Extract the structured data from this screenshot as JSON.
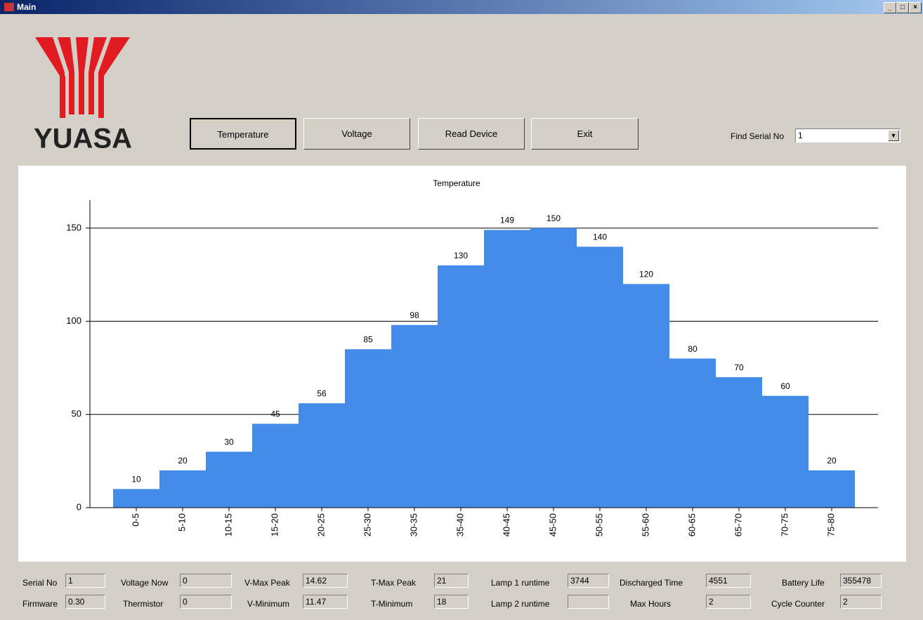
{
  "window": {
    "title": "Main"
  },
  "logo": "YUASA",
  "buttons": [
    "Temperature",
    "Voltage",
    "Read Device",
    "Exit"
  ],
  "serial_search": {
    "label": "Find Serial No",
    "value": "1"
  },
  "chart_data": {
    "type": "bar",
    "title": "Temperature",
    "categories": [
      "0-5",
      "5-10",
      "10-15",
      "15-20",
      "20-25",
      "25-30",
      "30-35",
      "35-40",
      "40-45",
      "45-50",
      "50-55",
      "55-60",
      "60-65",
      "65-70",
      "70-75",
      "75-80"
    ],
    "values": [
      10,
      20,
      30,
      45,
      56,
      85,
      98,
      130,
      149,
      150,
      140,
      120,
      80,
      70,
      60,
      20
    ],
    "color": "#438cea",
    "ylim": [
      0,
      165
    ],
    "yticks": [
      0,
      50,
      100,
      150
    ],
    "grid": true
  },
  "fields": [
    {
      "label": "Serial No",
      "value": "1"
    },
    {
      "label": "Firmware",
      "value": "0.30"
    },
    {
      "label": "Voltage Now",
      "value": "0"
    },
    {
      "label": "Thermistor",
      "value": "0"
    },
    {
      "label": "V-Max Peak",
      "value": "14.62"
    },
    {
      "label": "V-Minimum",
      "value": "11.47"
    },
    {
      "label": "T-Max Peak",
      "value": "21"
    },
    {
      "label": "T-Minimum",
      "value": "18"
    },
    {
      "label": "Lamp 1 runtime",
      "value": "3744"
    },
    {
      "label": "Lamp 2 runtime"
    },
    {
      "label": "Discharged Time",
      "value": "4551"
    },
    {
      "label": "Max Hours",
      "value": "2"
    },
    {
      "label": "Battery Life",
      "value": "355478"
    },
    {
      "label": "Cycle Counter",
      "value": "2"
    }
  ]
}
